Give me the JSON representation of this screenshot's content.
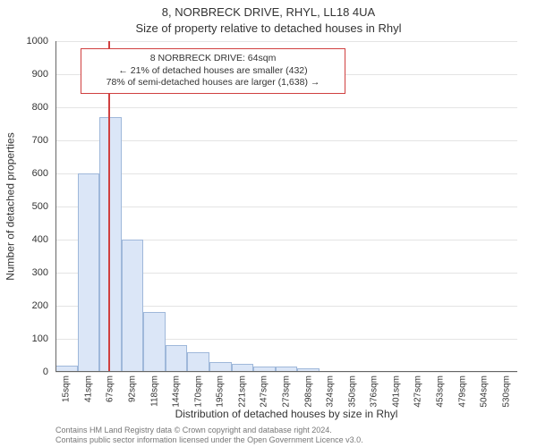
{
  "title_main": "8, NORBRECK DRIVE, RHYL, LL18 4UA",
  "title_sub": "Size of property relative to detached houses in Rhyl",
  "y_axis": {
    "title": "Number of detached properties",
    "min": 0,
    "max": 1000,
    "ticks": [
      0,
      100,
      200,
      300,
      400,
      500,
      600,
      700,
      800,
      900,
      1000
    ]
  },
  "x_axis": {
    "title": "Distribution of detached houses by size in Rhyl",
    "labels": [
      "15sqm",
      "41sqm",
      "67sqm",
      "92sqm",
      "118sqm",
      "144sqm",
      "170sqm",
      "195sqm",
      "221sqm",
      "247sqm",
      "273sqm",
      "298sqm",
      "324sqm",
      "350sqm",
      "376sqm",
      "401sqm",
      "427sqm",
      "453sqm",
      "479sqm",
      "504sqm",
      "530sqm"
    ]
  },
  "bars": {
    "values": [
      20,
      600,
      770,
      400,
      180,
      80,
      60,
      30,
      25,
      15,
      15,
      10,
      0,
      0,
      0,
      0,
      0,
      0,
      0,
      0,
      0
    ],
    "fill_color": "#dbe6f7",
    "border_color": "#9fb8da",
    "width_fraction": 1.0
  },
  "marker": {
    "value_sqm": 64,
    "color": "#d04040"
  },
  "annotation": {
    "lines": [
      "8 NORBRECK DRIVE: 64sqm",
      "← 21% of detached houses are smaller (432)",
      "78% of semi-detached houses are larger (1,638) →"
    ],
    "border_color": "#d04040",
    "background_color": "#ffffff",
    "text_color": "#333333"
  },
  "grid": {
    "color": "#e4e4e4"
  },
  "background_color": "#ffffff",
  "footer": {
    "line1": "Contains HM Land Registry data © Crown copyright and database right 2024.",
    "line2": "Contains public sector information licensed under the Open Government Licence v3.0."
  },
  "fonts": {
    "title_fontsize": 13,
    "axis_title_fontsize": 12,
    "tick_fontsize": 11,
    "annotation_fontsize": 10.5,
    "footer_fontsize": 9
  }
}
